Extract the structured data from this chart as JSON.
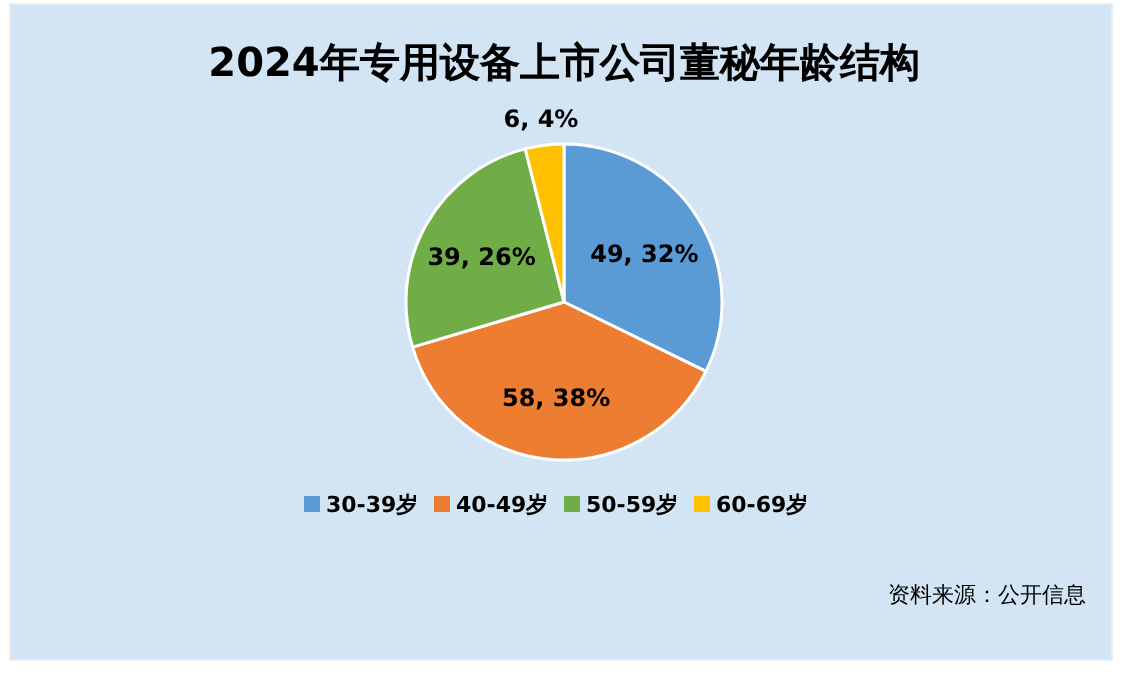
{
  "chart_data": {
    "type": "pie",
    "title": "2024年专用设备上市公司董秘年龄结构",
    "categories": [
      "30-39岁",
      "40-49岁",
      "50-59岁",
      "60-69岁"
    ],
    "values": [
      49,
      58,
      39,
      6
    ],
    "value_labels": [
      "49, 32%",
      "58, 38%",
      "39, 26%",
      "6, 4%"
    ],
    "colors": [
      "#5b9bd5",
      "#ed7d31",
      "#70ad47",
      "#ffc000"
    ],
    "legend": "bottom",
    "annotations": [
      "资料来源：公开信息"
    ]
  }
}
